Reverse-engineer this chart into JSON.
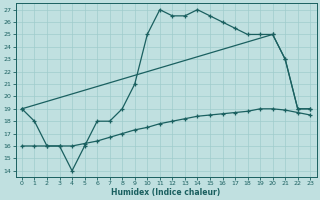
{
  "title": "",
  "xlabel": "Humidex (Indice chaleur)",
  "bg_color": "#c0e0e0",
  "line_color": "#1a6060",
  "grid_color": "#a0cccc",
  "xlim": [
    -0.5,
    23.5
  ],
  "ylim": [
    13.5,
    27.5
  ],
  "xticks": [
    0,
    1,
    2,
    3,
    4,
    5,
    6,
    7,
    8,
    9,
    10,
    11,
    12,
    13,
    14,
    15,
    16,
    17,
    18,
    19,
    20,
    21,
    22,
    23
  ],
  "yticks": [
    14,
    15,
    16,
    17,
    18,
    19,
    20,
    21,
    22,
    23,
    24,
    25,
    26,
    27
  ],
  "series1_x": [
    0,
    1,
    2,
    3,
    4,
    5,
    6,
    7,
    8,
    9,
    10,
    11,
    12,
    13,
    14,
    15,
    16,
    17,
    18,
    19,
    20,
    21,
    22,
    23
  ],
  "series1_y": [
    19,
    18,
    16,
    16,
    14,
    16,
    18,
    18,
    19,
    21,
    25,
    27,
    26.5,
    26.5,
    27,
    26.5,
    26,
    25.5,
    25,
    25,
    25,
    23,
    19,
    19
  ],
  "series2_x": [
    0,
    20,
    21,
    22,
    23
  ],
  "series2_y": [
    19,
    25,
    23,
    19,
    19
  ],
  "series3_x": [
    0,
    1,
    2,
    3,
    4,
    5,
    6,
    7,
    8,
    9,
    10,
    11,
    12,
    13,
    14,
    15,
    16,
    17,
    18,
    19,
    20,
    21,
    22,
    23
  ],
  "series3_y": [
    16,
    16,
    16,
    16,
    16,
    16.2,
    16.4,
    16.7,
    17.0,
    17.3,
    17.5,
    17.8,
    18.0,
    18.2,
    18.4,
    18.5,
    18.6,
    18.7,
    18.8,
    19.0,
    19.0,
    18.9,
    18.7,
    18.5
  ]
}
